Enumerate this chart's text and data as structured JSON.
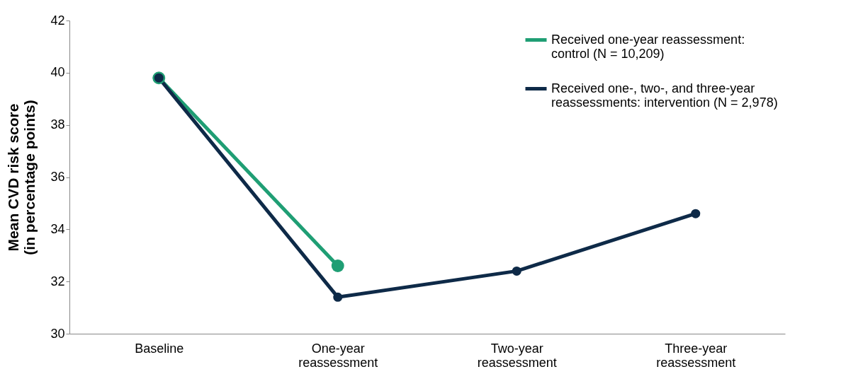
{
  "chart_data": {
    "type": "line",
    "ylabel": "Mean CVD risk score (in percentage points)",
    "categories": [
      "Baseline",
      "One-year reassessment",
      "Two-year reassessment",
      "Three-year reassessment"
    ],
    "series": [
      {
        "name": "Received one-year reassessment: control (N = 10,209)",
        "color": "#1f9e74",
        "values": [
          39.8,
          32.6,
          null,
          null
        ]
      },
      {
        "name": "Received one-, two-, and three-year reassessments: intervention (N = 2,978)",
        "color": "#0e2a48",
        "values": [
          39.8,
          31.4,
          32.4,
          34.6
        ]
      }
    ],
    "ylim": [
      30,
      42
    ],
    "yticks": [
      30,
      32,
      34,
      36,
      38,
      40,
      42
    ],
    "grid": false,
    "legend": "top right",
    "marker": "circle",
    "line_style": "solid"
  }
}
